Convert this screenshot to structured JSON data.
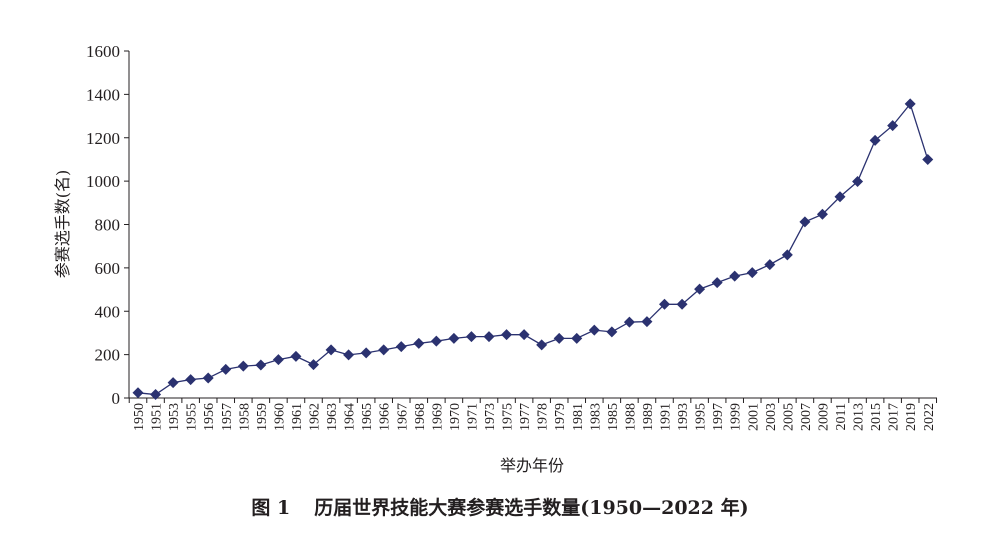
{
  "chart_data": {
    "type": "line",
    "caption_number": "图 1",
    "caption_title": "历届世界技能大赛参赛选手数量(1950—2022 年)",
    "xlabel": "举办年份",
    "ylabel": "参赛选手数(名)",
    "ylim": [
      0,
      1600
    ],
    "yticks": [
      "0",
      "200",
      "400",
      "600",
      "800",
      "1000",
      "1200",
      "1400",
      "1600"
    ],
    "categories": [
      "1950",
      "1951",
      "1953",
      "1955",
      "1956",
      "1957",
      "1958",
      "1959",
      "1960",
      "1961",
      "1962",
      "1963",
      "1964",
      "1965",
      "1966",
      "1967",
      "1968",
      "1969",
      "1970",
      "1971",
      "1973",
      "1975",
      "1977",
      "1978",
      "1979",
      "1981",
      "1983",
      "1985",
      "1988",
      "1989",
      "1991",
      "1993",
      "1995",
      "1997",
      "1999",
      "2001",
      "2003",
      "2005",
      "2007",
      "2009",
      "2011",
      "2013",
      "2015",
      "2017",
      "2019",
      "2022"
    ],
    "series": [
      {
        "values": [
          24,
          16,
          71,
          85,
          92,
          132,
          147,
          152,
          177,
          192,
          154,
          222,
          199,
          208,
          222,
          237,
          252,
          262,
          275,
          283,
          283,
          292,
          292,
          245,
          275,
          275,
          313,
          305,
          350,
          352,
          432,
          432,
          502,
          532,
          562,
          578,
          615,
          660,
          812,
          847,
          928,
          998,
          1188,
          1256,
          1356,
          1100
        ],
        "color": "#2b3270"
      }
    ],
    "grid": false,
    "legend": "none",
    "marker": "diamond",
    "axis_color": "#231f20"
  }
}
